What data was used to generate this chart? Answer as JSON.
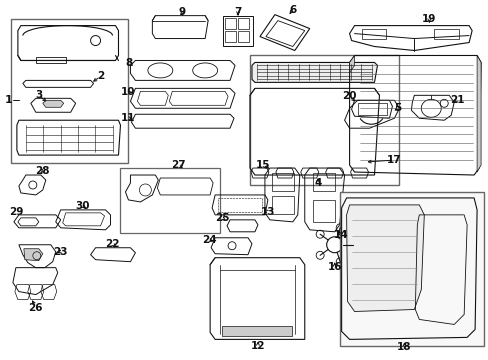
{
  "bg_color": "#ffffff",
  "line_color": "#111111",
  "gray_color": "#cccccc",
  "border_color": "#666666",
  "fig_width": 4.89,
  "fig_height": 3.6,
  "dpi": 100
}
